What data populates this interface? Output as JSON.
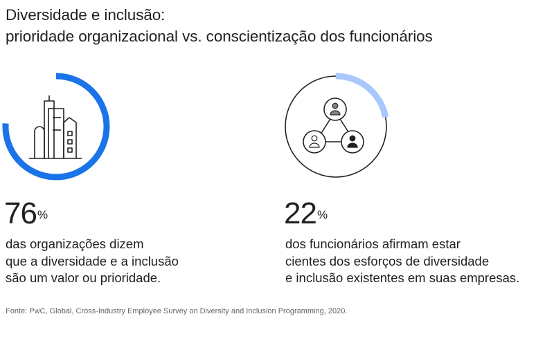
{
  "title_line1": "Diversidade e inclusão:",
  "title_line2": "prioridade organizacional vs. conscientização dos funcionários",
  "colors": {
    "ring_dark": "#1a73e8",
    "ring_light": "#a8c7fa",
    "ring_track": "#ffffff",
    "icon_stroke": "#202124",
    "icon_fill_gray": "#80868b"
  },
  "chart_data": [
    {
      "type": "donut",
      "value": 76,
      "unit": "%",
      "value_label": "76",
      "description": [
        "das organizações dizem",
        "que a diversidade e a inclusão",
        "são um valor ou prioridade."
      ],
      "icon": "buildings-icon",
      "color": "#1a73e8"
    },
    {
      "type": "donut",
      "value": 22,
      "unit": "%",
      "value_label": "22",
      "description": [
        "dos funcionários afirmam estar",
        "cientes dos esforços de diversidade",
        "e inclusão existentes em suas empresas."
      ],
      "icon": "people-network-icon",
      "color": "#a8c7fa"
    }
  ],
  "source": "Fonte: PwC, Global, Cross-Industry Employee Survey on Diversity and Inclusion Programming, 2020."
}
